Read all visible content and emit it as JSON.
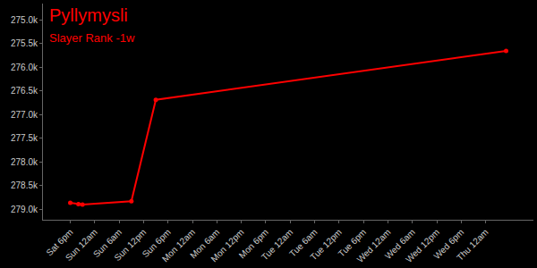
{
  "chart_data": {
    "type": "line",
    "title": "Pyllymysli",
    "subtitle": "Slayer Rank -1w",
    "color": "#ff0000",
    "marker": "circle",
    "grid": false,
    "categories": [
      "Sat 6pm",
      null,
      null,
      null,
      null,
      null,
      "Sun 12am",
      null,
      null,
      null,
      null,
      null,
      "Sun 6am",
      null,
      null,
      null,
      null,
      null,
      "Sun 12pm",
      null,
      null,
      null,
      null,
      null,
      "Sun 6pm",
      null,
      null,
      null,
      null,
      null,
      "Mon 12am",
      null,
      null,
      null,
      null,
      null,
      "Mon 6am",
      null,
      null,
      null,
      null,
      null,
      "Mon 12pm",
      null,
      null,
      null,
      null,
      null,
      "Mon 6pm",
      null,
      null,
      null,
      null,
      null,
      "Tue 12am",
      null,
      null,
      null,
      null,
      null,
      "Tue 6am",
      null,
      null,
      null,
      null,
      null,
      "Tue 12pm",
      null,
      null,
      null,
      null,
      null,
      "Tue 6pm",
      null,
      null,
      null,
      null,
      null,
      "Wed 12am",
      null,
      null,
      null,
      null,
      null,
      "Wed 6am",
      null,
      null,
      null,
      null,
      null,
      "Wed 12pm",
      null,
      null,
      null,
      null,
      null,
      "Wed 6pm",
      null,
      null,
      null,
      null,
      null,
      "Thu 12am",
      null,
      null,
      null,
      null,
      null
    ],
    "values": [
      278860,
      null,
      278890,
      278900,
      null,
      null,
      null,
      null,
      null,
      null,
      null,
      null,
      null,
      null,
      null,
      278830,
      null,
      null,
      null,
      null,
      null,
      276690,
      null,
      null,
      null,
      null,
      null,
      null,
      null,
      null,
      null,
      null,
      null,
      null,
      null,
      null,
      null,
      null,
      null,
      null,
      null,
      null,
      null,
      null,
      null,
      null,
      null,
      null,
      null,
      null,
      null,
      null,
      null,
      null,
      null,
      null,
      null,
      null,
      null,
      null,
      null,
      null,
      null,
      null,
      null,
      null,
      null,
      null,
      null,
      null,
      null,
      null,
      null,
      null,
      null,
      null,
      null,
      null,
      null,
      null,
      null,
      null,
      null,
      null,
      null,
      null,
      null,
      null,
      null,
      null,
      null,
      null,
      null,
      null,
      null,
      null,
      null,
      null,
      null,
      null,
      null,
      null,
      null,
      null,
      null,
      null,
      null,
      275660
    ],
    "ylim": [
      279220,
      274660
    ],
    "yticks": [
      {
        "value": 275000,
        "label": "275.0k"
      },
      {
        "value": 275500,
        "label": "275.5k"
      },
      {
        "value": 276000,
        "label": "276.0k"
      },
      {
        "value": 276500,
        "label": "276.5k"
      },
      {
        "value": 277000,
        "label": "277.0k"
      },
      {
        "value": 277500,
        "label": "277.5k"
      },
      {
        "value": 278000,
        "label": "278.0k"
      },
      {
        "value": 278500,
        "label": "278.5k"
      },
      {
        "value": 279000,
        "label": "279.0k"
      }
    ]
  }
}
